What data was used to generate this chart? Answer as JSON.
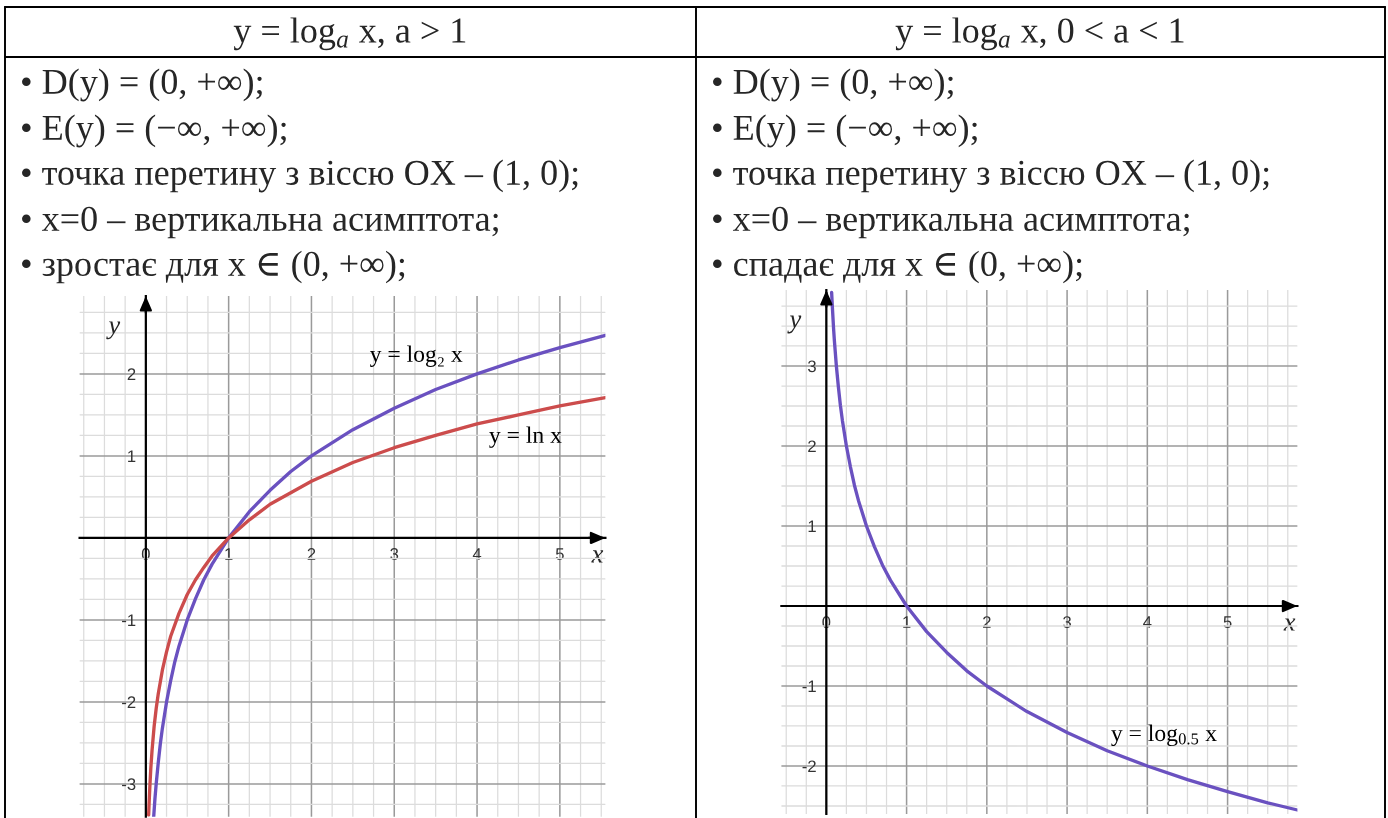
{
  "chart_data": [
    {
      "type": "line",
      "title": "y = log$_{a}$ x, a > 1",
      "annotations": [
        "• D(y) = (0, +∞);",
        "• E(y) = (−∞, +∞);",
        "• точка перетину з віссю OX – (1, 0);",
        "• x=0 – вертикальна асимптота;",
        "• зростає для x ∈ (0, +∞);"
      ],
      "xlabel": "x",
      "ylabel": "y",
      "xlim": [
        -0.8,
        5.55
      ],
      "ylim": [
        -3.4,
        2.95
      ],
      "grid": true,
      "xticks": [
        {
          "value": -0.75,
          "label": null
        },
        {
          "value": -0.5,
          "label": null
        },
        {
          "value": -0.25,
          "label": null
        },
        0,
        {
          "value": 0.25,
          "label": null
        },
        {
          "value": 0.5,
          "label": null
        },
        {
          "value": 0.75,
          "label": null
        },
        1,
        {
          "value": 1.25,
          "label": null
        },
        {
          "value": 1.5,
          "label": null
        },
        {
          "value": 1.75,
          "label": null
        },
        2,
        {
          "value": 2.25,
          "label": null
        },
        {
          "value": 2.5,
          "label": null
        },
        {
          "value": 2.75,
          "label": null
        },
        3,
        {
          "value": 3.25,
          "label": null
        },
        {
          "value": 3.5,
          "label": null
        },
        {
          "value": 3.75,
          "label": null
        },
        4,
        {
          "value": 4.25,
          "label": null
        },
        {
          "value": 4.5,
          "label": null
        },
        {
          "value": 4.75,
          "label": null
        },
        5,
        {
          "value": 5.25,
          "label": null
        },
        {
          "value": 5.5,
          "label": null
        }
      ],
      "yticks": [
        {
          "value": -3.25,
          "label": null
        },
        -3,
        {
          "value": -2.75,
          "label": null
        },
        {
          "value": -2.5,
          "label": null
        },
        {
          "value": -2.25,
          "label": null
        },
        -2,
        {
          "value": -1.75,
          "label": null
        },
        {
          "value": -1.5,
          "label": null
        },
        {
          "value": -1.25,
          "label": null
        },
        -1,
        {
          "value": -0.75,
          "label": null
        },
        {
          "value": -0.5,
          "label": null
        },
        {
          "value": -0.25,
          "label": null
        },
        {
          "value": 0.25,
          "label": null
        },
        {
          "value": 0.5,
          "label": null
        },
        {
          "value": 0.75,
          "label": null
        },
        1,
        {
          "value": 1.25,
          "label": null
        },
        {
          "value": 1.5,
          "label": null
        },
        {
          "value": 1.75,
          "label": null
        },
        2,
        {
          "value": 2.25,
          "label": null
        },
        {
          "value": 2.5,
          "label": null
        },
        {
          "value": 2.75,
          "label": null
        }
      ],
      "series": [
        {
          "name": "y = log₂ x",
          "color": "#6a51c0",
          "x": [
            0.095,
            0.11,
            0.125,
            0.15,
            0.175,
            0.2,
            0.25,
            0.3,
            0.35,
            0.4,
            0.5,
            0.6,
            0.7,
            0.8,
            1,
            1.25,
            1.5,
            1.75,
            2,
            2.5,
            3,
            3.5,
            4,
            4.5,
            5,
            5.55
          ],
          "values": [
            -3.4,
            -3.18,
            -3.0,
            -2.74,
            -2.51,
            -2.32,
            -2.0,
            -1.74,
            -1.51,
            -1.32,
            -1.0,
            -0.74,
            -0.51,
            -0.32,
            0,
            0.32,
            0.58,
            0.81,
            1.0,
            1.32,
            1.58,
            1.81,
            2.0,
            2.17,
            2.32,
            2.47
          ]
        },
        {
          "name": "y = ln x",
          "color": "#cc4c4c",
          "x": [
            0.034,
            0.04,
            0.05,
            0.06,
            0.075,
            0.1,
            0.125,
            0.15,
            0.2,
            0.25,
            0.3,
            0.4,
            0.5,
            0.6,
            0.7,
            0.8,
            1,
            1.25,
            1.5,
            2,
            2.5,
            3,
            3.5,
            4,
            4.5,
            5,
            5.55
          ],
          "values": [
            -3.38,
            -3.22,
            -3.0,
            -2.81,
            -2.59,
            -2.3,
            -2.08,
            -1.9,
            -1.61,
            -1.39,
            -1.2,
            -0.92,
            -0.69,
            -0.51,
            -0.36,
            -0.22,
            0,
            0.22,
            0.41,
            0.69,
            0.92,
            1.1,
            1.25,
            1.39,
            1.5,
            1.61,
            1.71
          ]
        }
      ]
    },
    {
      "type": "line",
      "title": "y = log$_{a}$ x, 0 < a < 1",
      "annotations": [
        "• D(y) = (0, +∞);",
        "• E(y) = (−∞, +∞);",
        "• точка перетину з віссю OX – (1, 0);",
        "• x=0 – вертикальна асимптота;",
        "• спадає для x ∈ (0, +∞);"
      ],
      "xlabel": "x",
      "ylabel": "y",
      "xlim": [
        -0.56,
        5.87
      ],
      "ylim": [
        -2.6,
        3.95
      ],
      "grid": true,
      "xticks": [
        {
          "value": -0.5,
          "label": null
        },
        {
          "value": -0.25,
          "label": null
        },
        0,
        {
          "value": 0.25,
          "label": null
        },
        {
          "value": 0.5,
          "label": null
        },
        {
          "value": 0.75,
          "label": null
        },
        1,
        {
          "value": 1.25,
          "label": null
        },
        {
          "value": 1.5,
          "label": null
        },
        {
          "value": 1.75,
          "label": null
        },
        2,
        {
          "value": 2.25,
          "label": null
        },
        {
          "value": 2.5,
          "label": null
        },
        {
          "value": 2.75,
          "label": null
        },
        3,
        {
          "value": 3.25,
          "label": null
        },
        {
          "value": 3.5,
          "label": null
        },
        {
          "value": 3.75,
          "label": null
        },
        4,
        {
          "value": 4.25,
          "label": null
        },
        {
          "value": 4.5,
          "label": null
        },
        {
          "value": 4.75,
          "label": null
        },
        5,
        {
          "value": 5.25,
          "label": null
        },
        {
          "value": 5.5,
          "label": null
        },
        {
          "value": 5.75,
          "label": null
        }
      ],
      "yticks": [
        {
          "value": -2.5,
          "label": null
        },
        {
          "value": -2.25,
          "label": null
        },
        -2,
        {
          "value": -1.75,
          "label": null
        },
        {
          "value": -1.5,
          "label": null
        },
        {
          "value": -1.25,
          "label": null
        },
        -1,
        {
          "value": -0.75,
          "label": null
        },
        {
          "value": -0.5,
          "label": null
        },
        {
          "value": -0.25,
          "label": null
        },
        {
          "value": 0.25,
          "label": null
        },
        {
          "value": 0.5,
          "label": null
        },
        {
          "value": 0.75,
          "label": null
        },
        1,
        {
          "value": 1.25,
          "label": null
        },
        {
          "value": 1.5,
          "label": null
        },
        {
          "value": 1.75,
          "label": null
        },
        2,
        {
          "value": 2.25,
          "label": null
        },
        {
          "value": 2.5,
          "label": null
        },
        {
          "value": 2.75,
          "label": null
        },
        3,
        {
          "value": 3.25,
          "label": null
        },
        {
          "value": 3.5,
          "label": null
        },
        {
          "value": 3.75,
          "label": null
        }
      ],
      "series": [
        {
          "name": "y = log$_{0.5}$ x",
          "color": "#6a51c0",
          "x": [
            0.066,
            0.075,
            0.09,
            0.1,
            0.125,
            0.15,
            0.175,
            0.2,
            0.25,
            0.3,
            0.35,
            0.4,
            0.5,
            0.6,
            0.7,
            0.8,
            1,
            1.25,
            1.5,
            1.75,
            2,
            2.5,
            3,
            3.5,
            4,
            4.5,
            5,
            5.5,
            5.87
          ],
          "values": [
            3.92,
            3.74,
            3.47,
            3.32,
            3.0,
            2.74,
            2.51,
            2.32,
            2.0,
            1.74,
            1.51,
            1.32,
            1.0,
            0.74,
            0.51,
            0.32,
            0,
            -0.32,
            -0.58,
            -0.81,
            -1.0,
            -1.32,
            -1.58,
            -1.81,
            -2.0,
            -2.17,
            -2.32,
            -2.46,
            -2.55
          ]
        }
      ]
    }
  ]
}
